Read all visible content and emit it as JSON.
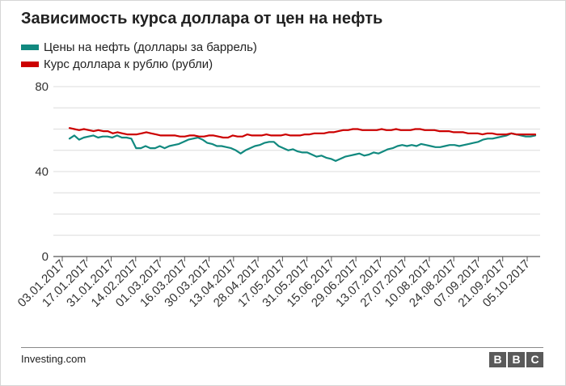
{
  "title": "Зависимость курса доллара от цен на нефть",
  "source": "Investing.com",
  "logo": [
    "B",
    "B",
    "C"
  ],
  "colors": {
    "oil": "#11897f",
    "usd": "#cc0000"
  },
  "chart_data": {
    "type": "line",
    "title": "Зависимость курса доллара от цен на нефть",
    "xlabel": "",
    "ylabel": "",
    "ylim": [
      0,
      80
    ],
    "yticks": [
      0,
      40,
      80
    ],
    "grid": true,
    "legend_position": "top-left",
    "xticks": [
      "03.01.2017",
      "17.01.2017",
      "31.01.2017",
      "14.02.2017",
      "01.03.2017",
      "16.03.2017",
      "30.03.2017",
      "13.04.2017",
      "28.04.2017",
      "17.05.2017",
      "31.05.2017",
      "15.06.2017",
      "29.06.2017",
      "13.07.2017",
      "27.07.2017",
      "10.08.2017",
      "24.08.2017",
      "07.09.2017",
      "21.09.2017",
      "05.10.2017"
    ],
    "series": [
      {
        "name": "Цены на нефть (доллары за баррель)",
        "color": "#11897f",
        "values": [
          55.5,
          57,
          55,
          56,
          56.5,
          57,
          56,
          56.5,
          56.5,
          56,
          57,
          56,
          56,
          55.5,
          51,
          51,
          52,
          51,
          51,
          52,
          51,
          52,
          52.5,
          53,
          54,
          55,
          55.5,
          56,
          55,
          53.5,
          53,
          52,
          52,
          51.5,
          51,
          50,
          48.5,
          50,
          51,
          52,
          52.5,
          53.5,
          54,
          54,
          52,
          51,
          50,
          50.5,
          49.5,
          49,
          49,
          48,
          47,
          47.5,
          46.5,
          46,
          45,
          46,
          47,
          47.5,
          48,
          48.5,
          47.5,
          48,
          49,
          48.5,
          49.5,
          50.5,
          51,
          52,
          52.5,
          52,
          52.5,
          52,
          53,
          52.5,
          52,
          51.5,
          51.5,
          52,
          52.5,
          52.5,
          52,
          52.5,
          53,
          53.5,
          54,
          55,
          55.5,
          55.5,
          56,
          56.5,
          57,
          58,
          57.5,
          57,
          56.5,
          56.5,
          57
        ]
      },
      {
        "name": "Курс доллара к рублю (рубли)",
        "color": "#cc0000",
        "values": [
          60.5,
          60,
          59.5,
          60,
          59.5,
          59,
          59.5,
          59,
          59,
          58,
          58.5,
          58,
          57.5,
          57.5,
          57.5,
          58,
          58.5,
          58,
          57.5,
          57,
          57,
          57,
          57,
          56.5,
          56.5,
          57,
          57,
          56.5,
          56.5,
          57,
          57,
          56.5,
          56,
          56,
          57,
          56.5,
          56.5,
          57.5,
          57,
          57,
          57,
          57.5,
          57,
          57,
          57,
          57.5,
          57,
          57,
          57,
          57.5,
          57.5,
          58,
          58,
          58,
          58.5,
          58.5,
          59,
          59.5,
          59.5,
          60,
          60,
          59.5,
          59.5,
          59.5,
          59.5,
          60,
          59.5,
          59.5,
          60,
          59.5,
          59.5,
          59.5,
          60,
          60,
          59.5,
          59.5,
          59.5,
          59,
          59,
          59,
          58.5,
          58.5,
          58.5,
          58,
          58,
          58,
          57.5,
          58,
          58,
          57.5,
          57.5,
          57.5,
          58,
          57.5,
          57.5,
          57.5,
          57.5,
          57.5
        ]
      }
    ]
  }
}
